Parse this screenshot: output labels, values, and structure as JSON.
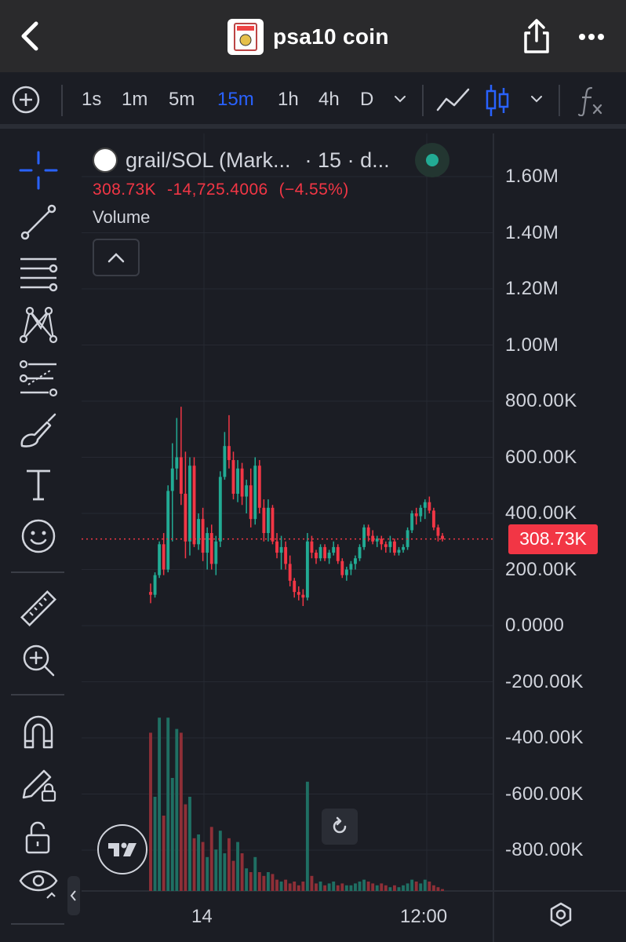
{
  "header": {
    "title": "psa10 coin",
    "icons": {
      "back": "back-arrow-icon",
      "share": "share-icon",
      "more": "more-dots-icon"
    }
  },
  "toolbar": {
    "intervals": [
      "1s",
      "1m",
      "5m",
      "15m",
      "1h",
      "4h",
      "D"
    ],
    "active_interval": "15m",
    "icons": [
      "add-circle-icon",
      "chevron-down-icon",
      "line-chart-icon",
      "candlestick-icon",
      "chevron-down-icon",
      "fx-indicator-icon"
    ]
  },
  "sidebar": {
    "tools": [
      "crosshair-icon",
      "trendline-icon",
      "fib-retracement-icon",
      "pattern-icon",
      "projection-icon",
      "brush-icon",
      "text-icon",
      "emoji-icon",
      "ruler-icon",
      "zoom-in-icon",
      "magnet-icon",
      "lock-drawing-icon",
      "lock-icon",
      "eye-icon"
    ]
  },
  "legend": {
    "symbol": "grail/SOL (Mark...",
    "interval": "· 15 · d...",
    "last": "308.73K",
    "change": "-14,725.4006",
    "change_pct": "(−4.55%)",
    "indicator": "Volume"
  },
  "accent": {
    "up": "#22ab94",
    "down": "#f23645",
    "active": "#2962ff"
  },
  "price_axis": [
    "1.60M",
    "1.40M",
    "1.20M",
    "1.00M",
    "800.00K",
    "600.00K",
    "400.00K",
    "200.00K",
    "0.0000",
    "-200.00K",
    "-400.00K",
    "-600.00K",
    "-800.00K"
  ],
  "current_price_label": "308.73K",
  "time_axis": [
    "14",
    "12:00"
  ],
  "chart_data": {
    "type": "candlestick",
    "last_price": 308730,
    "ylim": [
      -900000,
      1700000
    ],
    "yticks": [
      1600000,
      1400000,
      1200000,
      1000000,
      800000,
      600000,
      400000,
      200000,
      0,
      -200000,
      -400000,
      -600000,
      -800000
    ],
    "candles": [
      [
        120000,
        150000,
        80000,
        110000
      ],
      [
        110000,
        190000,
        100000,
        180000
      ],
      [
        180000,
        300000,
        170000,
        290000
      ],
      [
        290000,
        330000,
        180000,
        200000
      ],
      [
        200000,
        500000,
        190000,
        480000
      ],
      [
        480000,
        650000,
        300000,
        560000
      ],
      [
        560000,
        740000,
        520000,
        600000
      ],
      [
        600000,
        780000,
        430000,
        470000
      ],
      [
        470000,
        620000,
        240000,
        300000
      ],
      [
        300000,
        600000,
        250000,
        570000
      ],
      [
        570000,
        600000,
        280000,
        290000
      ],
      [
        290000,
        400000,
        270000,
        380000
      ],
      [
        380000,
        420000,
        230000,
        260000
      ],
      [
        260000,
        350000,
        200000,
        330000
      ],
      [
        330000,
        360000,
        200000,
        220000
      ],
      [
        220000,
        320000,
        180000,
        300000
      ],
      [
        300000,
        550000,
        280000,
        530000
      ],
      [
        530000,
        690000,
        520000,
        640000
      ],
      [
        640000,
        750000,
        560000,
        590000
      ],
      [
        590000,
        620000,
        450000,
        470000
      ],
      [
        470000,
        590000,
        440000,
        560000
      ],
      [
        560000,
        580000,
        430000,
        460000
      ],
      [
        460000,
        520000,
        400000,
        500000
      ],
      [
        500000,
        560000,
        350000,
        380000
      ],
      [
        380000,
        600000,
        360000,
        570000
      ],
      [
        570000,
        590000,
        400000,
        420000
      ],
      [
        420000,
        450000,
        300000,
        330000
      ],
      [
        330000,
        450000,
        300000,
        420000
      ],
      [
        420000,
        430000,
        290000,
        300000
      ],
      [
        300000,
        330000,
        240000,
        260000
      ],
      [
        260000,
        320000,
        200000,
        280000
      ],
      [
        280000,
        300000,
        200000,
        220000
      ],
      [
        220000,
        250000,
        140000,
        160000
      ],
      [
        160000,
        170000,
        100000,
        120000
      ],
      [
        120000,
        140000,
        90000,
        110000
      ],
      [
        110000,
        130000,
        70000,
        100000
      ],
      [
        100000,
        330000,
        90000,
        300000
      ],
      [
        300000,
        320000,
        240000,
        260000
      ],
      [
        260000,
        270000,
        220000,
        240000
      ],
      [
        240000,
        290000,
        230000,
        280000
      ],
      [
        280000,
        290000,
        230000,
        240000
      ],
      [
        240000,
        270000,
        220000,
        260000
      ],
      [
        260000,
        300000,
        250000,
        280000
      ],
      [
        280000,
        290000,
        220000,
        230000
      ],
      [
        230000,
        240000,
        170000,
        180000
      ],
      [
        180000,
        210000,
        160000,
        200000
      ],
      [
        200000,
        230000,
        180000,
        220000
      ],
      [
        220000,
        250000,
        200000,
        240000
      ],
      [
        240000,
        290000,
        230000,
        280000
      ],
      [
        280000,
        360000,
        270000,
        350000
      ],
      [
        350000,
        360000,
        300000,
        320000
      ],
      [
        320000,
        340000,
        290000,
        300000
      ],
      [
        300000,
        320000,
        280000,
        310000
      ],
      [
        310000,
        320000,
        270000,
        290000
      ],
      [
        290000,
        300000,
        260000,
        280000
      ],
      [
        280000,
        320000,
        260000,
        300000
      ],
      [
        300000,
        310000,
        250000,
        260000
      ],
      [
        260000,
        280000,
        250000,
        270000
      ],
      [
        270000,
        290000,
        260000,
        280000
      ],
      [
        280000,
        350000,
        270000,
        340000
      ],
      [
        340000,
        410000,
        330000,
        400000
      ],
      [
        400000,
        420000,
        360000,
        390000
      ],
      [
        390000,
        430000,
        370000,
        420000
      ],
      [
        420000,
        450000,
        380000,
        440000
      ],
      [
        440000,
        460000,
        400000,
        410000
      ],
      [
        410000,
        420000,
        340000,
        350000
      ],
      [
        350000,
        360000,
        300000,
        320000
      ],
      [
        320000,
        330000,
        300000,
        308730
      ]
    ],
    "volume_rel": [
      0.84,
      0.5,
      0.92,
      0.4,
      0.92,
      0.6,
      0.86,
      0.84,
      0.46,
      0.5,
      0.28,
      0.3,
      0.26,
      0.18,
      0.34,
      0.22,
      0.32,
      0.2,
      0.28,
      0.16,
      0.26,
      0.2,
      0.12,
      0.1,
      0.18,
      0.1,
      0.08,
      0.1,
      0.09,
      0.06,
      0.05,
      0.06,
      0.04,
      0.05,
      0.03,
      0.05,
      0.58,
      0.08,
      0.04,
      0.05,
      0.03,
      0.04,
      0.05,
      0.03,
      0.04,
      0.03,
      0.03,
      0.04,
      0.05,
      0.06,
      0.05,
      0.04,
      0.03,
      0.04,
      0.03,
      0.02,
      0.03,
      0.02,
      0.03,
      0.04,
      0.06,
      0.05,
      0.04,
      0.06,
      0.05,
      0.03,
      0.02,
      0.01
    ]
  }
}
